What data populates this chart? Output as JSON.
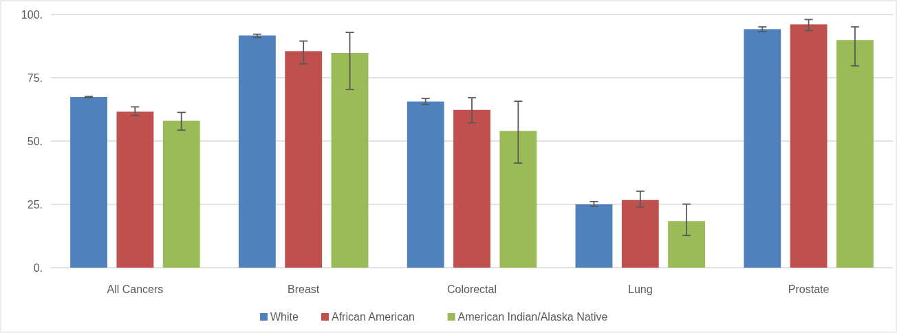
{
  "chart_data": {
    "type": "bar",
    "categories": [
      "All Cancers",
      "Breast",
      "Colorectal",
      "Lung",
      "Prostate"
    ],
    "series": [
      {
        "name": "White",
        "color": "#4f81bd",
        "values": [
          67.4,
          91.7,
          65.6,
          25.0,
          94.2
        ],
        "errors": [
          [
            67.2,
            67.6
          ],
          [
            90.9,
            92.2
          ],
          [
            64.5,
            66.8
          ],
          [
            24.2,
            26.1
          ],
          [
            93.2,
            95.1
          ]
        ]
      },
      {
        "name": "African American",
        "color": "#c0504d",
        "values": [
          61.6,
          85.5,
          62.3,
          26.7,
          96.1
        ],
        "errors": [
          [
            60.1,
            63.5
          ],
          [
            80.5,
            89.5
          ],
          [
            57.2,
            67.1
          ],
          [
            23.9,
            30.2
          ],
          [
            93.6,
            98.0
          ]
        ]
      },
      {
        "name": "American Indian/Alaska Native",
        "color": "#9bbb59",
        "values": [
          58.0,
          84.8,
          54.0,
          18.4,
          89.9
        ],
        "errors": [
          [
            54.3,
            61.3
          ],
          [
            70.4,
            92.9
          ],
          [
            41.3,
            65.7
          ],
          [
            12.7,
            25.1
          ],
          [
            79.7,
            95.1
          ]
        ]
      }
    ],
    "ylim": [
      0,
      100
    ],
    "yticks": [
      {
        "value": 0,
        "label": "0."
      },
      {
        "value": 25,
        "label": "25."
      },
      {
        "value": 50,
        "label": "50."
      },
      {
        "value": 75,
        "label": "75."
      },
      {
        "value": 100,
        "label": "100."
      }
    ],
    "grid": "y",
    "legend": "bottom"
  }
}
